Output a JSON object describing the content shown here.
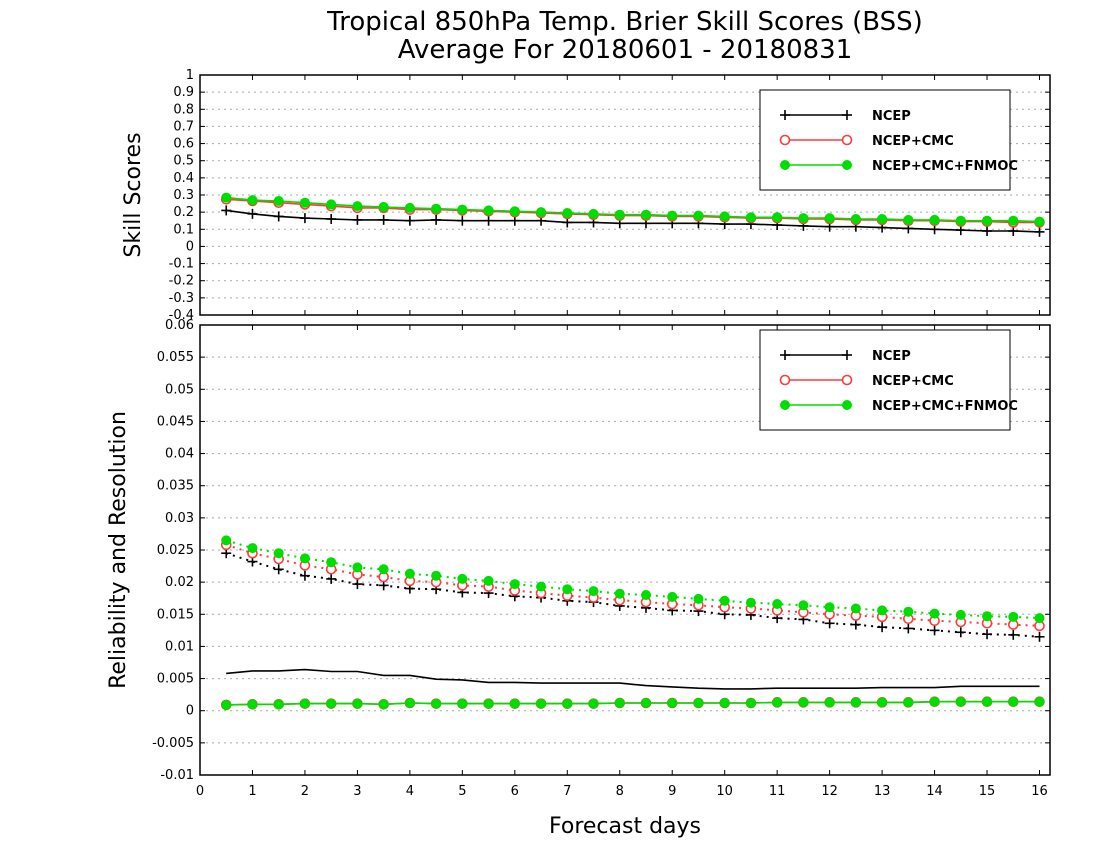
{
  "chart_data": [
    {
      "type": "line",
      "title": "Tropical 850hPa Temp. Brier Skill Scores (BSS)",
      "subtitle": "Average For 20180601 - 20180831",
      "xlabel": "Forecast days",
      "ylabel": "Skill Scores",
      "xlim": [
        0,
        16.2
      ],
      "ylim": [
        -0.4,
        1
      ],
      "xticks": [
        "0",
        "1",
        "2",
        "3",
        "4",
        "5",
        "6",
        "7",
        "8",
        "9",
        "10",
        "11",
        "12",
        "13",
        "14",
        "15",
        "16"
      ],
      "yticks": [
        "-0.4",
        "-0.3",
        "-0.2",
        "-0.1",
        "0",
        "0.1",
        "0.2",
        "0.3",
        "0.4",
        "0.5",
        "0.6",
        "0.7",
        "0.8",
        "0.9",
        "1"
      ],
      "grid": true,
      "legend_position": "top-right",
      "legend": [
        "NCEP",
        "NCEP+CMC",
        "NCEP+CMC+FNMOC"
      ],
      "x": [
        0.5,
        1,
        1.5,
        2,
        2.5,
        3,
        3.5,
        4,
        4.5,
        5,
        5.5,
        6,
        6.5,
        7,
        7.5,
        8,
        8.5,
        9,
        9.5,
        10,
        10.5,
        11,
        11.5,
        12,
        12.5,
        13,
        13.5,
        14,
        14.5,
        15,
        15.5,
        16
      ],
      "series": [
        {
          "name": "NCEP",
          "color": "#000000",
          "marker": "plus",
          "values": [
            0.21,
            0.19,
            0.175,
            0.165,
            0.16,
            0.155,
            0.155,
            0.15,
            0.155,
            0.15,
            0.15,
            0.15,
            0.15,
            0.14,
            0.14,
            0.135,
            0.135,
            0.135,
            0.135,
            0.13,
            0.13,
            0.125,
            0.12,
            0.115,
            0.115,
            0.11,
            0.105,
            0.1,
            0.095,
            0.09,
            0.09,
            0.085
          ]
        },
        {
          "name": "NCEP+CMC",
          "color": "#ff3b3b",
          "marker": "open-circle",
          "values": [
            0.275,
            0.265,
            0.255,
            0.245,
            0.235,
            0.225,
            0.225,
            0.215,
            0.215,
            0.21,
            0.205,
            0.2,
            0.195,
            0.19,
            0.185,
            0.18,
            0.18,
            0.175,
            0.175,
            0.17,
            0.165,
            0.165,
            0.16,
            0.16,
            0.155,
            0.155,
            0.15,
            0.15,
            0.145,
            0.145,
            0.14,
            0.14
          ]
        },
        {
          "name": "NCEP+CMC+FNMOC",
          "color": "#00dd00",
          "marker": "filled-circle",
          "values": [
            0.285,
            0.27,
            0.265,
            0.255,
            0.245,
            0.235,
            0.23,
            0.225,
            0.22,
            0.215,
            0.21,
            0.205,
            0.2,
            0.195,
            0.19,
            0.185,
            0.185,
            0.18,
            0.18,
            0.175,
            0.17,
            0.17,
            0.165,
            0.165,
            0.16,
            0.16,
            0.155,
            0.155,
            0.15,
            0.15,
            0.15,
            0.145
          ]
        }
      ]
    },
    {
      "type": "line",
      "xlabel": "Forecast days",
      "ylabel": "Reliability and Resolution",
      "xlim": [
        0,
        16.2
      ],
      "ylim": [
        -0.01,
        0.06
      ],
      "xticks": [
        "0",
        "1",
        "2",
        "3",
        "4",
        "5",
        "6",
        "7",
        "8",
        "9",
        "10",
        "11",
        "12",
        "13",
        "14",
        "15",
        "16"
      ],
      "yticks": [
        "-0.01",
        "-0.005",
        "0",
        "0.005",
        "0.01",
        "0.015",
        "0.02",
        "0.025",
        "0.03",
        "0.035",
        "0.04",
        "0.045",
        "0.05",
        "0.055",
        "0.06"
      ],
      "grid": true,
      "legend_position": "top-right",
      "legend": [
        "NCEP",
        "NCEP+CMC",
        "NCEP+CMC+FNMOC"
      ],
      "x": [
        0.5,
        1,
        1.5,
        2,
        2.5,
        3,
        3.5,
        4,
        4.5,
        5,
        5.5,
        6,
        6.5,
        7,
        7.5,
        8,
        8.5,
        9,
        9.5,
        10,
        10.5,
        11,
        11.5,
        12,
        12.5,
        13,
        13.5,
        14,
        14.5,
        15,
        15.5,
        16
      ],
      "series": [
        {
          "name": "NCEP",
          "style": "dotted",
          "color": "#000000",
          "marker": "plus",
          "values": [
            0.0245,
            0.0232,
            0.022,
            0.021,
            0.0205,
            0.0197,
            0.0195,
            0.019,
            0.0189,
            0.0184,
            0.0183,
            0.0178,
            0.0176,
            0.0171,
            0.0169,
            0.0163,
            0.016,
            0.0156,
            0.0155,
            0.015,
            0.0149,
            0.0144,
            0.0142,
            0.0136,
            0.0134,
            0.013,
            0.0128,
            0.0125,
            0.0122,
            0.0119,
            0.0118,
            0.0115
          ]
        },
        {
          "name": "NCEP",
          "style": "solid",
          "color": "#000000",
          "marker": "none",
          "values": [
            0.0058,
            0.0062,
            0.0062,
            0.0064,
            0.0061,
            0.0061,
            0.0055,
            0.0055,
            0.0049,
            0.0048,
            0.0044,
            0.0044,
            0.0043,
            0.0043,
            0.0043,
            0.0043,
            0.0039,
            0.0037,
            0.0035,
            0.0034,
            0.0034,
            0.0035,
            0.0035,
            0.0035,
            0.0035,
            0.0036,
            0.0036,
            0.0036,
            0.0038,
            0.0038,
            0.0038,
            0.0038
          ]
        },
        {
          "name": "NCEP+CMC",
          "style": "dotted",
          "color": "#ff3b3b",
          "marker": "open-circle",
          "values": [
            0.0258,
            0.0245,
            0.0236,
            0.0226,
            0.022,
            0.0212,
            0.0208,
            0.0202,
            0.02,
            0.0195,
            0.0193,
            0.0187,
            0.0183,
            0.0179,
            0.0176,
            0.0172,
            0.0169,
            0.0166,
            0.0164,
            0.0161,
            0.0159,
            0.0156,
            0.0153,
            0.015,
            0.0148,
            0.0146,
            0.0143,
            0.014,
            0.0138,
            0.0136,
            0.0134,
            0.0132
          ]
        },
        {
          "name": "NCEP+CMC",
          "style": "solid",
          "color": "#ff3b3b",
          "marker": "open-circle",
          "values": [
            0.0009,
            0.001,
            0.001,
            0.0011,
            0.0011,
            0.0011,
            0.001,
            0.0012,
            0.0011,
            0.0011,
            0.0011,
            0.0011,
            0.0011,
            0.0011,
            0.0011,
            0.0012,
            0.0012,
            0.0012,
            0.0012,
            0.0012,
            0.0012,
            0.0013,
            0.0013,
            0.0013,
            0.0013,
            0.0013,
            0.0013,
            0.0014,
            0.0014,
            0.0014,
            0.0014,
            0.0014
          ]
        },
        {
          "name": "NCEP+CMC+FNMOC",
          "style": "dotted",
          "color": "#00dd00",
          "marker": "filled-circle",
          "values": [
            0.0265,
            0.0253,
            0.0245,
            0.0237,
            0.0231,
            0.0223,
            0.022,
            0.0213,
            0.021,
            0.0205,
            0.0202,
            0.0197,
            0.0193,
            0.0189,
            0.0186,
            0.0182,
            0.018,
            0.0177,
            0.0174,
            0.0171,
            0.0168,
            0.0166,
            0.0164,
            0.0161,
            0.0159,
            0.0156,
            0.0154,
            0.0151,
            0.0149,
            0.0147,
            0.0146,
            0.0144
          ]
        },
        {
          "name": "NCEP+CMC+FNMOC",
          "style": "solid",
          "color": "#00dd00",
          "marker": "filled-circle",
          "values": [
            0.0009,
            0.001,
            0.001,
            0.0011,
            0.0011,
            0.0011,
            0.001,
            0.0012,
            0.0011,
            0.0011,
            0.0011,
            0.0011,
            0.0011,
            0.0011,
            0.0011,
            0.0012,
            0.0012,
            0.0012,
            0.0012,
            0.0012,
            0.0012,
            0.0013,
            0.0013,
            0.0013,
            0.0013,
            0.0013,
            0.0013,
            0.0014,
            0.0014,
            0.0014,
            0.0014,
            0.0014
          ]
        }
      ]
    }
  ]
}
